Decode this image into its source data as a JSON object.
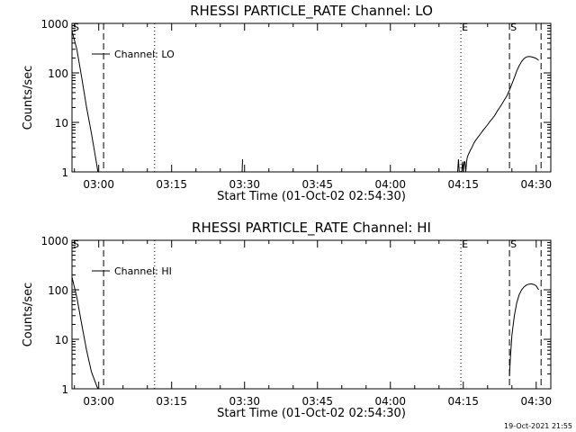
{
  "chart_data": [
    {
      "type": "line",
      "title": "RHESSI PARTICLE_RATE Channel: LO",
      "xlabel": "Start Time (01-Oct-02 02:54:30)",
      "ylabel": "Counts/sec",
      "yscale": "log",
      "ylim": [
        1,
        1000
      ],
      "xlim": [
        "02:54:30",
        "04:33:00"
      ],
      "xticks": [
        "03:00",
        "03:15",
        "03:30",
        "03:45",
        "04:00",
        "04:15",
        "04:30"
      ],
      "yticks": [
        "1",
        "10",
        "100",
        "1000"
      ],
      "legend": {
        "label": "Channel: LO",
        "position": "top-left"
      },
      "vlines": [
        {
          "t": "02:54:30",
          "style": "dashed",
          "label": "S"
        },
        {
          "t": "03:01:00",
          "style": "dashed",
          "label": ""
        },
        {
          "t": "03:11:30",
          "style": "dotted",
          "label": ""
        },
        {
          "t": "04:14:30",
          "style": "dotted",
          "label": "E"
        },
        {
          "t": "04:24:30",
          "style": "dashed",
          "label": "S"
        },
        {
          "t": "04:31:00",
          "style": "dashed",
          "label": ""
        }
      ],
      "series": [
        {
          "name": "Channel: LO",
          "segments": [
            {
              "x": [
                "02:54:30",
                "02:55:30",
                "02:56:30",
                "02:57:30",
                "02:58:30",
                "02:59:30",
                "02:59:50"
              ],
              "y": [
                700,
                300,
                80,
                20,
                6,
                1.6,
                1
              ]
            },
            {
              "x": [
                "03:29:30",
                "03:29:35"
              ],
              "y": [
                1,
                1.8
              ]
            },
            {
              "x": [
                "04:13:50",
                "04:14:00",
                "04:14:10",
                "04:14:40",
                "04:14:50",
                "04:15:00",
                "04:15:10",
                "04:15:20",
                "04:15:30",
                "04:15:40",
                "04:15:50",
                "04:16:10",
                "04:16:30",
                "04:16:50",
                "04:17:10",
                "04:17:30",
                "04:18:00",
                "04:18:30",
                "04:19:00",
                "04:19:30",
                "04:20:00",
                "04:20:30",
                "04:21:00",
                "04:21:30",
                "04:22:00",
                "04:22:30",
                "04:23:00",
                "04:23:30",
                "04:24:00",
                "04:24:30",
                "04:25:00",
                "04:25:30",
                "04:26:00",
                "04:26:30",
                "04:27:00",
                "04:27:30",
                "04:28:00",
                "04:28:30",
                "04:29:00",
                "04:29:30",
                "04:30:00",
                "04:30:30"
              ],
              "y": [
                1,
                1.8,
                1,
                1,
                1.6,
                1,
                1.6,
                1.6,
                1,
                1.6,
                2.0,
                2.4,
                2.8,
                3.2,
                3.8,
                4.3,
                5.0,
                5.8,
                6.8,
                7.8,
                9.0,
                10.5,
                12,
                14,
                17,
                20,
                24,
                29,
                35,
                45,
                60,
                80,
                110,
                140,
                170,
                195,
                210,
                215,
                212,
                205,
                195,
                180
              ]
            }
          ]
        }
      ]
    },
    {
      "type": "line",
      "title": "RHESSI PARTICLE_RATE Channel: HI",
      "xlabel": "Start Time (01-Oct-02 02:54:30)",
      "ylabel": "Counts/sec",
      "yscale": "log",
      "ylim": [
        1,
        1000
      ],
      "xlim": [
        "02:54:30",
        "04:33:00"
      ],
      "xticks": [
        "03:00",
        "03:15",
        "03:30",
        "03:45",
        "04:00",
        "04:15",
        "04:30"
      ],
      "yticks": [
        "1",
        "10",
        "100",
        "1000"
      ],
      "legend": {
        "label": "Channel: HI",
        "position": "top-left"
      },
      "vlines": [
        {
          "t": "02:54:30",
          "style": "dashed",
          "label": "S"
        },
        {
          "t": "03:01:00",
          "style": "dashed",
          "label": ""
        },
        {
          "t": "03:11:30",
          "style": "dotted",
          "label": ""
        },
        {
          "t": "04:14:30",
          "style": "dotted",
          "label": "E"
        },
        {
          "t": "04:24:30",
          "style": "dashed",
          "label": "S"
        },
        {
          "t": "04:31:00",
          "style": "dashed",
          "label": ""
        }
      ],
      "series": [
        {
          "name": "Channel: HI",
          "segments": [
            {
              "x": [
                "02:54:30",
                "02:55:30",
                "02:56:30",
                "02:57:30",
                "02:58:30",
                "02:59:30",
                "02:59:50"
              ],
              "y": [
                180,
                70,
                20,
                6,
                2.2,
                1.2,
                1
              ]
            },
            {
              "x": [
                "04:24:30",
                "04:24:40",
                "04:25:00",
                "04:25:30",
                "04:26:00",
                "04:26:30",
                "04:27:00",
                "04:27:30",
                "04:28:00",
                "04:28:30",
                "04:29:00",
                "04:29:30",
                "04:30:00",
                "04:30:30"
              ],
              "y": [
                1.8,
                4,
                12,
                30,
                55,
                80,
                100,
                115,
                125,
                130,
                132,
                128,
                120,
                100
              ]
            }
          ]
        }
      ]
    }
  ],
  "footer": {
    "stamp": "19-Oct-2021 21:55"
  }
}
